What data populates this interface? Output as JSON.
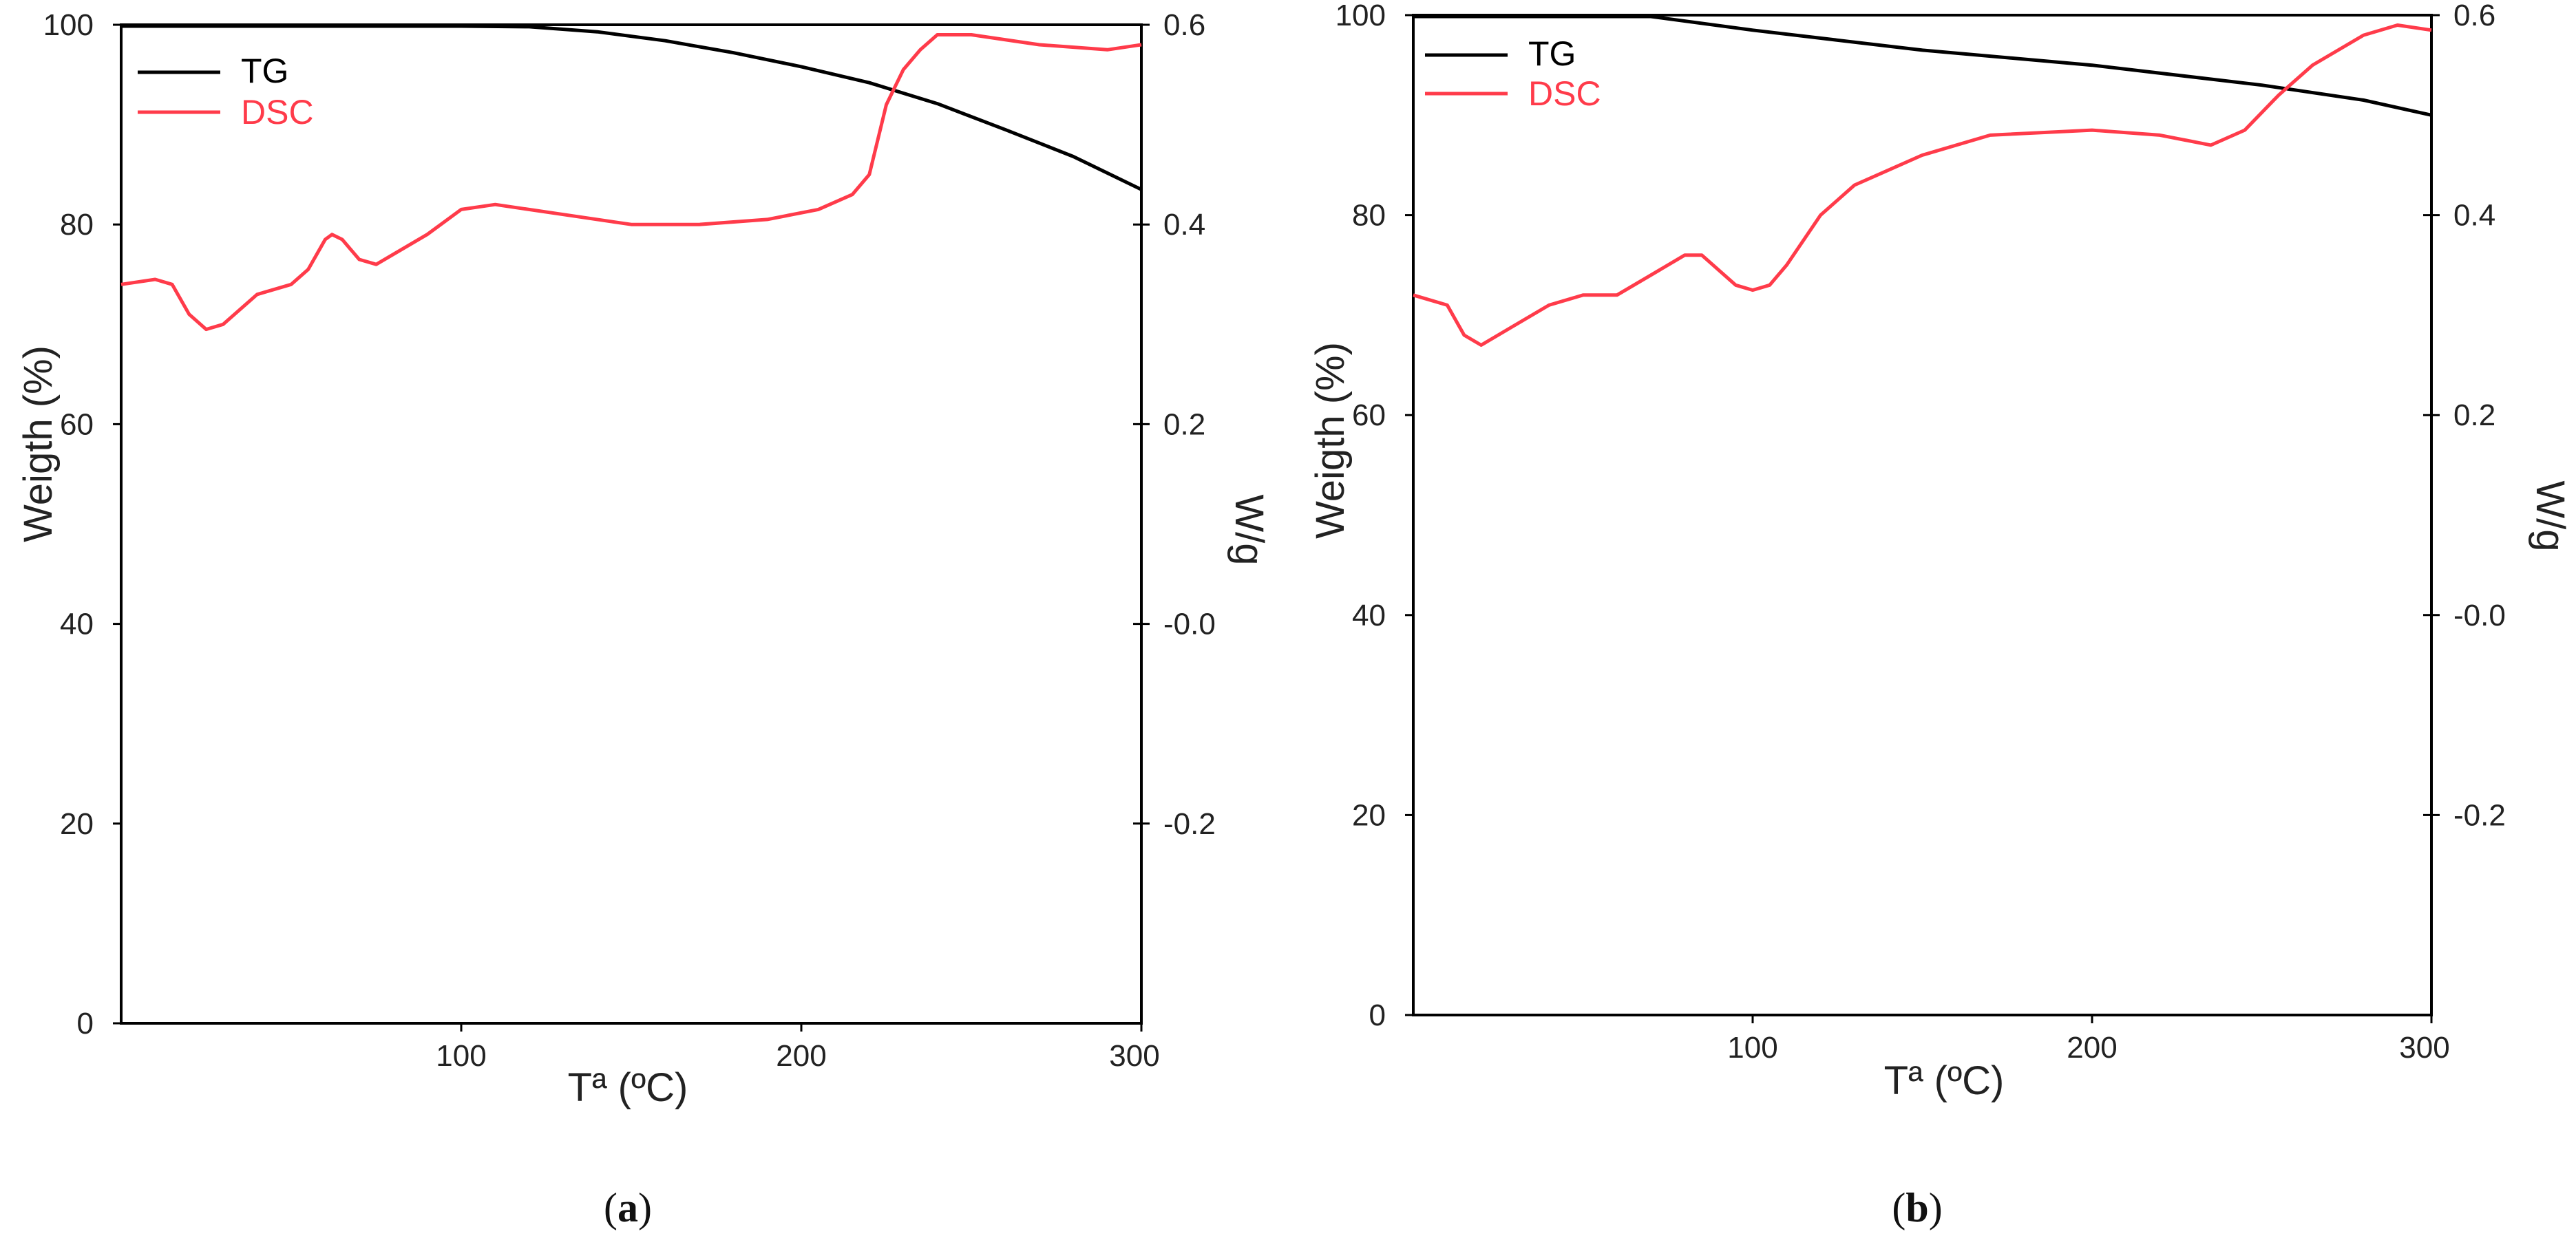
{
  "chart_data": [
    {
      "type": "line",
      "panel": "a",
      "panel_caption": {
        "open": "(",
        "letter": "a",
        "close": ")"
      },
      "xlabel": "Tª (ºC)",
      "ylabel": "Weigth (%)",
      "y2label": "W/g",
      "xlim": [
        0,
        300
      ],
      "ylim": [
        0,
        100
      ],
      "y2lim": [
        -0.4,
        0.6
      ],
      "xticks": [
        {
          "v": 100,
          "label": "100"
        },
        {
          "v": 200,
          "label": "200"
        },
        {
          "v": 300,
          "label": "300"
        }
      ],
      "yticks": [
        {
          "v": 0,
          "label": "0"
        },
        {
          "v": 20,
          "label": "20"
        },
        {
          "v": 40,
          "label": "40"
        },
        {
          "v": 60,
          "label": "60"
        },
        {
          "v": 80,
          "label": "80"
        },
        {
          "v": 100,
          "label": "100"
        }
      ],
      "y2ticks": [
        {
          "v": -0.2,
          "label": "-0.2"
        },
        {
          "v": 0.0,
          "label": "-0.0"
        },
        {
          "v": 0.2,
          "label": "0.2"
        },
        {
          "v": 0.4,
          "label": "0.4"
        },
        {
          "v": 0.6,
          "label": "0.6"
        }
      ],
      "legend": {
        "position": "top-left",
        "entries": [
          {
            "name": "TG",
            "color": "#000000"
          },
          {
            "name": "DSC",
            "color": "#ff3b4a"
          }
        ]
      },
      "series": [
        {
          "name": "TG",
          "axis": "left",
          "color": "#000000",
          "x": [
            0,
            50,
            100,
            120,
            140,
            160,
            180,
            200,
            220,
            240,
            260,
            280,
            300
          ],
          "y": [
            101.5,
            101,
            100,
            99.8,
            99.3,
            98.4,
            97.2,
            95.8,
            94.2,
            92.1,
            89.5,
            86.8,
            83.5
          ]
        },
        {
          "name": "DSC",
          "axis": "right",
          "color": "#ff3b4a",
          "x": [
            0,
            10,
            15,
            20,
            25,
            30,
            40,
            50,
            55,
            60,
            62,
            65,
            70,
            75,
            80,
            90,
            100,
            110,
            130,
            150,
            170,
            190,
            205,
            215,
            220,
            225,
            230,
            235,
            240,
            250,
            270,
            290,
            300
          ],
          "y": [
            0.34,
            0.345,
            0.34,
            0.31,
            0.295,
            0.3,
            0.33,
            0.34,
            0.355,
            0.385,
            0.39,
            0.385,
            0.365,
            0.36,
            0.37,
            0.39,
            0.415,
            0.42,
            0.41,
            0.4,
            0.4,
            0.405,
            0.415,
            0.43,
            0.45,
            0.52,
            0.555,
            0.575,
            0.59,
            0.59,
            0.58,
            0.575,
            0.58
          ]
        }
      ]
    },
    {
      "type": "line",
      "panel": "b",
      "panel_caption": {
        "open": "(",
        "letter": "b",
        "close": ")"
      },
      "xlabel": "Tª (ºC)",
      "ylabel": "Weigth (%)",
      "y2label": "W/g",
      "xlim": [
        0,
        300
      ],
      "ylim": [
        0,
        100
      ],
      "y2lim": [
        -0.4,
        0.6
      ],
      "xticks": [
        {
          "v": 100,
          "label": "100"
        },
        {
          "v": 200,
          "label": "200"
        },
        {
          "v": 300,
          "label": "300"
        }
      ],
      "yticks": [
        {
          "v": 0,
          "label": "0"
        },
        {
          "v": 20,
          "label": "20"
        },
        {
          "v": 40,
          "label": "40"
        },
        {
          "v": 60,
          "label": "60"
        },
        {
          "v": 80,
          "label": "80"
        },
        {
          "v": 100,
          "label": "100"
        }
      ],
      "y2ticks": [
        {
          "v": -0.2,
          "label": "-0.2"
        },
        {
          "v": 0.0,
          "label": "-0.0"
        },
        {
          "v": 0.2,
          "label": "0.2"
        },
        {
          "v": 0.4,
          "label": "0.4"
        },
        {
          "v": 0.6,
          "label": "0.6"
        }
      ],
      "legend": {
        "position": "top-left",
        "entries": [
          {
            "name": "TG",
            "color": "#000000"
          },
          {
            "name": "DSC",
            "color": "#ff3b4a"
          }
        ]
      },
      "series": [
        {
          "name": "TG",
          "axis": "left",
          "color": "#000000",
          "x": [
            0,
            50,
            70,
            100,
            150,
            200,
            250,
            280,
            300
          ],
          "y": [
            101.5,
            101,
            100,
            98.5,
            96.5,
            95,
            93,
            91.5,
            90
          ]
        },
        {
          "name": "DSC",
          "axis": "right",
          "color": "#ff3b4a",
          "x": [
            0,
            10,
            15,
            20,
            30,
            40,
            50,
            60,
            70,
            80,
            85,
            90,
            95,
            100,
            105,
            110,
            120,
            130,
            150,
            170,
            200,
            220,
            235,
            245,
            255,
            265,
            280,
            290,
            300
          ],
          "y": [
            0.32,
            0.31,
            0.28,
            0.27,
            0.29,
            0.31,
            0.32,
            0.32,
            0.34,
            0.36,
            0.36,
            0.345,
            0.33,
            0.325,
            0.33,
            0.35,
            0.4,
            0.43,
            0.46,
            0.48,
            0.485,
            0.48,
            0.47,
            0.485,
            0.52,
            0.55,
            0.58,
            0.59,
            0.585
          ]
        }
      ]
    }
  ]
}
